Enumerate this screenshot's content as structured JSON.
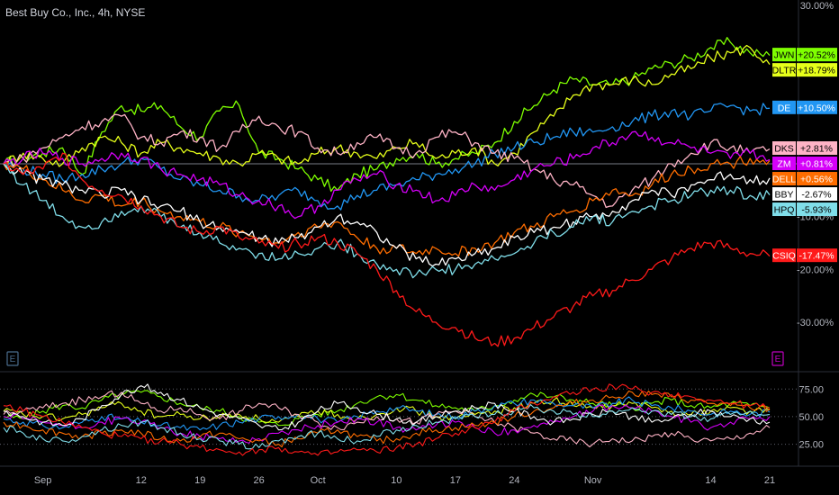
{
  "header": {
    "title": "Best Buy Co., Inc., 4h, NYSE"
  },
  "event_markers": [
    {
      "label": "E",
      "color": "#4a6c8c"
    },
    {
      "label": "E",
      "color": "#c000c0"
    }
  ],
  "chart_data": [
    {
      "type": "line",
      "title": "Best Buy Co., Inc., 4h, NYSE",
      "y_scale": "percent",
      "ylim": [
        -38,
        31
      ],
      "y_ticks": [
        {
          "value": 30,
          "label": "30.00%"
        },
        {
          "value": -10,
          "label": "-10.00%"
        },
        {
          "value": -20,
          "label": "-20.00%"
        },
        {
          "value": -30,
          "label": "-30.00%"
        }
      ],
      "baseline": 0,
      "x_tick_labels": [
        {
          "pos": 2,
          "label": "Sep"
        },
        {
          "pos": 7,
          "label": "12"
        },
        {
          "pos": 10,
          "label": "19"
        },
        {
          "pos": 13,
          "label": "26"
        },
        {
          "pos": 16,
          "label": "Oct"
        },
        {
          "pos": 20,
          "label": "10"
        },
        {
          "pos": 23,
          "label": "17"
        },
        {
          "pos": 26,
          "label": "24"
        },
        {
          "pos": 30,
          "label": "Nov"
        },
        {
          "pos": 36,
          "label": "14"
        },
        {
          "pos": 39,
          "label": "21"
        }
      ],
      "x_points": 40,
      "series": [
        {
          "name": "JWN",
          "color": "#7fff00",
          "last_label": "+20.52%",
          "values": [
            0,
            1,
            2,
            3,
            -2,
            6,
            11,
            10,
            11,
            7,
            5,
            10,
            11,
            2,
            1,
            -1,
            -3,
            -5,
            -2,
            -1,
            1,
            2,
            0,
            1,
            2,
            4,
            8,
            11,
            14,
            16,
            15,
            15,
            16,
            18,
            19,
            20,
            22,
            23,
            21,
            20.5
          ]
        },
        {
          "name": "DLTR",
          "color": "#e6ff1a",
          "last_label": "+18.79%",
          "values": [
            0,
            2,
            1,
            0,
            3,
            5,
            4,
            2,
            4,
            3,
            2,
            1,
            0,
            2,
            1,
            0,
            2,
            3,
            2,
            1,
            3,
            4,
            1,
            2,
            3,
            0,
            2,
            6,
            9,
            13,
            15,
            15,
            16,
            15,
            17,
            18,
            20,
            21,
            22,
            18.8
          ]
        },
        {
          "name": "DE",
          "color": "#2196f3",
          "last_label": "+10.50%",
          "values": [
            0,
            -1,
            -2,
            -3,
            -2,
            -1,
            0,
            1,
            -1,
            -3,
            -4,
            -5,
            -6,
            -7,
            -6,
            -5,
            -7,
            -8,
            -6,
            -5,
            -4,
            -3,
            -2,
            -1,
            0,
            2,
            3,
            4,
            5,
            6,
            6,
            7,
            8,
            9,
            10,
            9,
            10,
            11,
            10,
            10.5
          ]
        },
        {
          "name": "DKS",
          "color": "#ffb3c6",
          "last_label": "+2.81%",
          "values": [
            0,
            1,
            3,
            5,
            7,
            8,
            9,
            5,
            4,
            6,
            5,
            3,
            6,
            9,
            7,
            6,
            3,
            2,
            4,
            5,
            3,
            2,
            5,
            6,
            4,
            2,
            1,
            -1,
            -3,
            -4,
            -6,
            -8,
            -5,
            -3,
            0,
            2,
            4,
            3,
            2,
            2.8
          ]
        },
        {
          "name": "ZM",
          "color": "#d500f9",
          "last_label": "+0.81%",
          "values": [
            0,
            1,
            2,
            1,
            0,
            1,
            2,
            1,
            -1,
            -2,
            -3,
            -4,
            -6,
            -7,
            -8,
            -10,
            -8,
            -5,
            -3,
            -2,
            -4,
            -5,
            -7,
            -6,
            -4,
            -5,
            -3,
            -1,
            0,
            1,
            3,
            4,
            6,
            5,
            4,
            3,
            2,
            1,
            2,
            0.8
          ]
        },
        {
          "name": "DELL",
          "color": "#ff6d00",
          "last_label": "+0.56%",
          "values": [
            0,
            -1,
            -3,
            -5,
            -7,
            -6,
            -8,
            -7,
            -9,
            -10,
            -11,
            -12,
            -13,
            -14,
            -15,
            -13,
            -12,
            -11,
            -14,
            -16,
            -16,
            -17,
            -16,
            -17,
            -16,
            -15,
            -13,
            -12,
            -10,
            -9,
            -7,
            -5,
            -6,
            -4,
            -2,
            -1,
            0,
            0,
            1,
            0.6
          ]
        },
        {
          "name": "BBY",
          "color": "#ffffff",
          "last_label": "-2.67%",
          "values": [
            0,
            -2,
            -3,
            -4,
            -5,
            -6,
            -5,
            -7,
            -8,
            -9,
            -11,
            -12,
            -13,
            -14,
            -15,
            -14,
            -12,
            -10,
            -11,
            -13,
            -16,
            -18,
            -19,
            -18,
            -17,
            -16,
            -14,
            -13,
            -12,
            -11,
            -10,
            -9,
            -7,
            -5,
            -6,
            -4,
            -3,
            -2,
            -3,
            -2.7
          ]
        },
        {
          "name": "HPQ",
          "color": "#80deea",
          "last_label": "-5.93%",
          "values": [
            0,
            -4,
            -7,
            -10,
            -12,
            -11,
            -9,
            -8,
            -10,
            -12,
            -13,
            -15,
            -16,
            -17,
            -18,
            -17,
            -16,
            -15,
            -17,
            -19,
            -20,
            -21,
            -20,
            -20,
            -19,
            -18,
            -17,
            -15,
            -13,
            -12,
            -10,
            -11,
            -9,
            -8,
            -7,
            -6,
            -5,
            -5,
            -6,
            -5.9
          ]
        },
        {
          "name": "CSIQ",
          "color": "#ff1a1a",
          "last_label": "-17.47%",
          "values": [
            0,
            -2,
            -1,
            2,
            -3,
            -5,
            -6,
            -8,
            -10,
            -12,
            -13,
            -12,
            -14,
            -15,
            -16,
            -15,
            -14,
            -15,
            -17,
            -20,
            -24,
            -28,
            -30,
            -31,
            -33,
            -34,
            -33,
            -31,
            -29,
            -27,
            -25,
            -24,
            -22,
            -20,
            -18,
            -16,
            -15,
            -16,
            -17,
            -17.5
          ]
        }
      ]
    },
    {
      "type": "line",
      "ylim": [
        10,
        85
      ],
      "y_ticks": [
        {
          "value": 75,
          "label": "75.00"
        },
        {
          "value": 50,
          "label": "50.00"
        },
        {
          "value": 25,
          "label": "25.00"
        }
      ],
      "series": [
        {
          "color": "#7fff00",
          "values": [
            50,
            48,
            55,
            60,
            58,
            65,
            70,
            72,
            68,
            62,
            58,
            55,
            50,
            45,
            42,
            48,
            52,
            55,
            62,
            68,
            70,
            65,
            60,
            58,
            55,
            60,
            65,
            70,
            68,
            65,
            62,
            60,
            58,
            62,
            65,
            60,
            58,
            62,
            60,
            58
          ]
        },
        {
          "color": "#e6ff1a",
          "values": [
            55,
            52,
            50,
            48,
            52,
            58,
            62,
            55,
            50,
            52,
            48,
            50,
            52,
            48,
            45,
            50,
            55,
            52,
            48,
            52,
            58,
            55,
            50,
            48,
            52,
            55,
            58,
            62,
            65,
            60,
            58,
            60,
            62,
            58,
            55,
            52,
            55,
            58,
            55,
            56
          ]
        },
        {
          "color": "#2196f3",
          "values": [
            48,
            45,
            42,
            40,
            45,
            50,
            48,
            45,
            42,
            40,
            38,
            42,
            45,
            48,
            50,
            52,
            48,
            45,
            50,
            55,
            58,
            55,
            52,
            50,
            55,
            60,
            62,
            65,
            62,
            60,
            58,
            62,
            65,
            60,
            58,
            55,
            52,
            55,
            52,
            54
          ]
        },
        {
          "color": "#ffb3c6",
          "values": [
            52,
            55,
            58,
            62,
            65,
            68,
            72,
            62,
            55,
            58,
            52,
            48,
            55,
            62,
            58,
            52,
            45,
            40,
            45,
            50,
            48,
            45,
            52,
            55,
            50,
            45,
            40,
            35,
            30,
            28,
            25,
            30,
            28,
            32,
            35,
            30,
            28,
            30,
            35,
            40
          ]
        },
        {
          "color": "#d500f9",
          "values": [
            50,
            48,
            45,
            42,
            40,
            45,
            48,
            45,
            40,
            35,
            32,
            30,
            28,
            30,
            35,
            38,
            42,
            45,
            48,
            45,
            40,
            38,
            42,
            45,
            40,
            35,
            38,
            42,
            45,
            50,
            55,
            60,
            58,
            55,
            50,
            45,
            40,
            45,
            48,
            50
          ]
        },
        {
          "color": "#ff6d00",
          "values": [
            45,
            42,
            38,
            35,
            32,
            35,
            38,
            35,
            30,
            28,
            32,
            35,
            30,
            28,
            25,
            30,
            35,
            38,
            32,
            28,
            30,
            35,
            38,
            40,
            42,
            45,
            50,
            55,
            58,
            62,
            65,
            68,
            72,
            70,
            68,
            65,
            62,
            60,
            58,
            57
          ]
        },
        {
          "color": "#ffffff",
          "values": [
            55,
            50,
            45,
            42,
            48,
            60,
            70,
            78,
            72,
            65,
            58,
            52,
            48,
            42,
            38,
            45,
            55,
            62,
            58,
            52,
            48,
            45,
            50,
            55,
            58,
            62,
            55,
            50,
            45,
            48,
            52,
            55,
            50,
            45,
            48,
            52,
            55,
            50,
            48,
            45
          ]
        },
        {
          "color": "#80deea",
          "values": [
            40,
            35,
            30,
            28,
            32,
            38,
            42,
            45,
            40,
            35,
            30,
            28,
            25,
            22,
            28,
            32,
            35,
            30,
            28,
            32,
            38,
            42,
            45,
            48,
            50,
            52,
            55,
            58,
            55,
            52,
            50,
            55,
            58,
            55,
            52,
            50,
            48,
            52,
            55,
            52
          ]
        },
        {
          "color": "#ff1a1a",
          "values": [
            60,
            55,
            50,
            45,
            40,
            35,
            32,
            30,
            28,
            25,
            22,
            20,
            18,
            20,
            22,
            18,
            15,
            18,
            20,
            18,
            22,
            25,
            30,
            35,
            40,
            45,
            55,
            62,
            68,
            72,
            75,
            78,
            75,
            72,
            70,
            68,
            65,
            62,
            60,
            58
          ]
        }
      ]
    }
  ]
}
